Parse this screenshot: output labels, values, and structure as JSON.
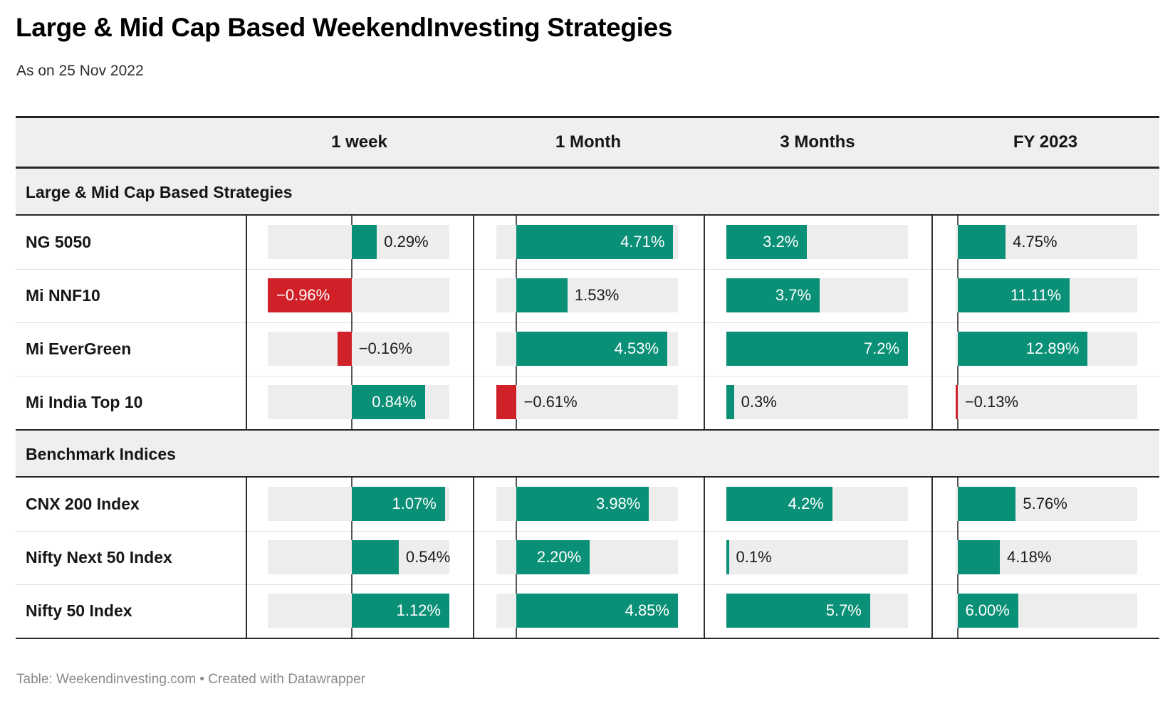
{
  "title": "Large & Mid Cap Based WeekendInvesting Strategies",
  "subtitle": "As on 25 Nov 2022",
  "footer": "Table: Weekendinvesting.com • Created with Datawrapper",
  "colors": {
    "positive": "#0a9076",
    "negative": "#d02028",
    "track": "#ededed",
    "band_background": "#efefef",
    "dark_border": "#262626",
    "label_light": "#ffffff",
    "label_dark": "#1a1a1a"
  },
  "chart_data": {
    "type": "table",
    "title": "Large & Mid Cap Based WeekendInvesting Strategies",
    "subtitle": "As on 25 Nov 2022",
    "value_format": "percent",
    "grid": false,
    "columns": [
      {
        "label": "1 week",
        "domain": [
          -0.96,
          1.12
        ],
        "zero_line": true
      },
      {
        "label": "1 Month",
        "domain": [
          -0.61,
          4.85
        ],
        "zero_line": true
      },
      {
        "label": "3 Months",
        "domain": [
          0,
          7.2
        ],
        "zero_line": false
      },
      {
        "label": "FY 2023",
        "domain": [
          -0.2,
          17.8
        ],
        "zero_line": true
      }
    ],
    "sections": [
      {
        "header": "Large & Mid Cap Based Strategies",
        "rows": [
          {
            "label": "NG 5050",
            "values": [
              0.29,
              4.71,
              3.2,
              4.75
            ],
            "display": [
              "0.29%",
              "4.71%",
              "3.2%",
              "4.75%"
            ]
          },
          {
            "label": "Mi NNF10",
            "values": [
              -0.96,
              1.53,
              3.7,
              11.11
            ],
            "display": [
              "−0.96%",
              "1.53%",
              "3.7%",
              "11.11%"
            ]
          },
          {
            "label": "Mi EverGreen",
            "values": [
              -0.16,
              4.53,
              7.2,
              12.89
            ],
            "display": [
              "−0.16%",
              "4.53%",
              "7.2%",
              "12.89%"
            ]
          },
          {
            "label": "Mi India Top 10",
            "values": [
              0.84,
              -0.61,
              0.3,
              -0.13
            ],
            "display": [
              "0.84%",
              "−0.61%",
              "0.3%",
              "−0.13%"
            ]
          }
        ]
      },
      {
        "header": "Benchmark Indices",
        "rows": [
          {
            "label": "CNX 200 Index",
            "values": [
              1.07,
              3.98,
              4.2,
              5.76
            ],
            "display": [
              "1.07%",
              "3.98%",
              "4.2%",
              "5.76%"
            ]
          },
          {
            "label": "Nifty Next 50 Index",
            "values": [
              0.54,
              2.2,
              0.1,
              4.18
            ],
            "display": [
              "0.54%",
              "2.20%",
              "0.1%",
              "4.18%"
            ]
          },
          {
            "label": "Nifty 50 Index",
            "values": [
              1.12,
              4.85,
              5.7,
              6.0
            ],
            "display": [
              "1.12%",
              "4.85%",
              "5.7%",
              "6.00%"
            ]
          }
        ]
      }
    ]
  }
}
